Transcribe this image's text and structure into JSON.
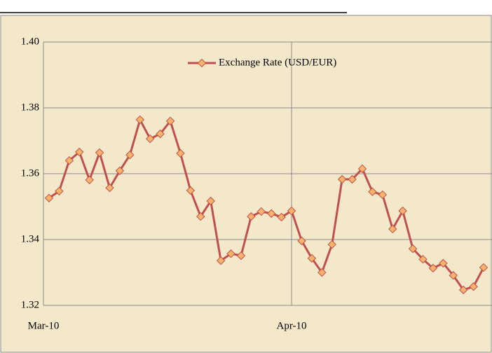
{
  "chart_data": {
    "type": "line",
    "categories": [
      "Mar-10",
      null,
      null,
      null,
      null,
      null,
      null,
      null,
      null,
      null,
      null,
      null,
      null,
      null,
      null,
      null,
      null,
      null,
      null,
      null,
      null,
      null,
      null,
      null,
      "Apr-10",
      null,
      null,
      null,
      null,
      null,
      null,
      null,
      null,
      null,
      null,
      null,
      null,
      null,
      null,
      null,
      null,
      null,
      null,
      null
    ],
    "series": [
      {
        "name": "Exchange Rate (USD/EUR)",
        "color": "#c0504d",
        "marker_color": "#f8b36b",
        "values": [
          1.3526,
          1.3547,
          1.364,
          1.3666,
          1.3581,
          1.3664,
          1.3557,
          1.3609,
          1.3657,
          1.3764,
          1.3706,
          1.3721,
          1.376,
          1.3662,
          1.3549,
          1.347,
          1.3517,
          1.3336,
          1.3357,
          1.3351,
          1.347,
          1.3485,
          1.3479,
          1.3468,
          1.3487,
          1.3396,
          1.3343,
          1.33,
          1.3385,
          1.3583,
          1.3583,
          1.3615,
          1.3545,
          1.3536,
          1.3432,
          1.3487,
          1.3372,
          1.334,
          1.3313,
          1.3328,
          1.3291,
          1.3247,
          1.3257,
          1.3315
        ]
      }
    ],
    "ylim": [
      1.32,
      1.4
    ],
    "yticks": [
      1.32,
      1.34,
      1.36,
      1.38,
      {
        "value": 1.4,
        "label": "1.40"
      }
    ],
    "grid": true,
    "legend": "top"
  }
}
